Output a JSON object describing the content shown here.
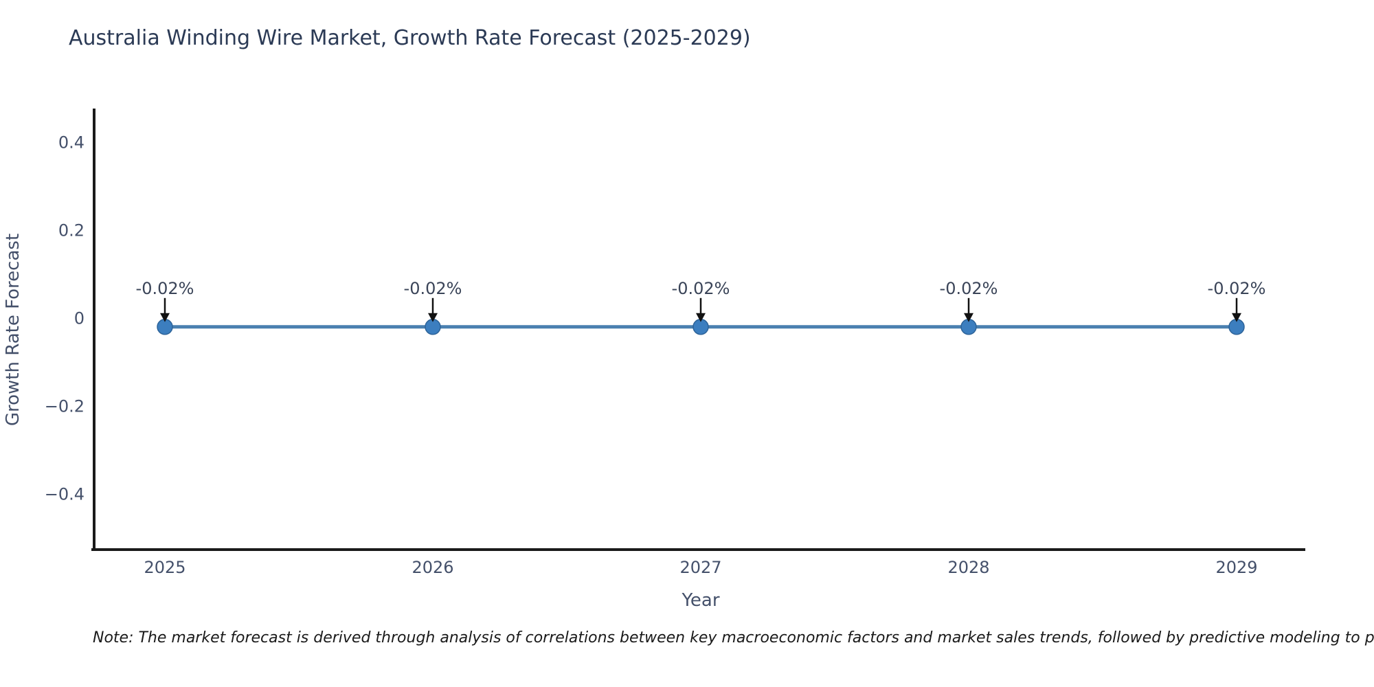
{
  "title": "Australia Winding Wire Market, Growth Rate Forecast (2025-2029)",
  "note": "Note: The market forecast is derived through analysis of correlations between key macroeconomic factors and market sales trends, followed by predictive modeling to project future sales.",
  "chart_data": {
    "type": "line",
    "title": "Australia Winding Wire Market, Growth Rate Forecast (2025-2029)",
    "xlabel": "Year",
    "ylabel": "Growth Rate Forecast",
    "categories": [
      "2025",
      "2026",
      "2027",
      "2028",
      "2029"
    ],
    "series": [
      {
        "name": "Growth Rate Forecast",
        "values": [
          -0.02,
          -0.02,
          -0.02,
          -0.02,
          -0.02
        ],
        "data_labels": [
          "-0.02%",
          "-0.02%",
          "-0.02%",
          "-0.02%",
          "-0.02%"
        ]
      }
    ],
    "y_ticks": [
      {
        "value": 0.4,
        "label": "0.4"
      },
      {
        "value": 0.2,
        "label": "0.2"
      },
      {
        "value": 0,
        "label": "0"
      },
      {
        "value": -0.2,
        "label": "−0.2"
      },
      {
        "value": -0.4,
        "label": "−0.4"
      }
    ],
    "ylim": [
      -0.53,
      0.47
    ],
    "grid": false,
    "legend_position": "none",
    "annotation_style": "label-with-down-arrow",
    "colors": {
      "line": "#4a80b0",
      "marker": "#3c7ebf",
      "marker_edge": "#2d6399",
      "axis": "#1a1a1a",
      "tick_label": "#44506a",
      "axis_label": "#44506a",
      "title": "#2b3a55",
      "annotation_text": "#3a4458",
      "arrow": "#111111",
      "note": "#1a1a1a",
      "background": "#ffffff"
    }
  }
}
